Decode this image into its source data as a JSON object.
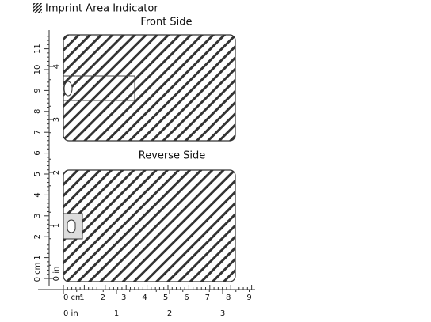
{
  "header": {
    "title": "Imprint Area Indicator"
  },
  "front": {
    "label": "Front Side"
  },
  "reverse": {
    "label": "Reverse Side"
  },
  "ruler": {
    "vertical_cm": [
      "0 cm",
      "1",
      "2",
      "3",
      "4",
      "5",
      "6",
      "7",
      "8",
      "9",
      "10",
      "11"
    ],
    "vertical_in": [
      "0 in",
      "1",
      "2",
      "3",
      "4"
    ],
    "horizontal_cm": [
      "0 cm",
      "1",
      "2",
      "3",
      "4",
      "5",
      "6",
      "7",
      "8",
      "9"
    ],
    "horizontal_in": [
      "0 in",
      "1",
      "2",
      "3"
    ]
  }
}
